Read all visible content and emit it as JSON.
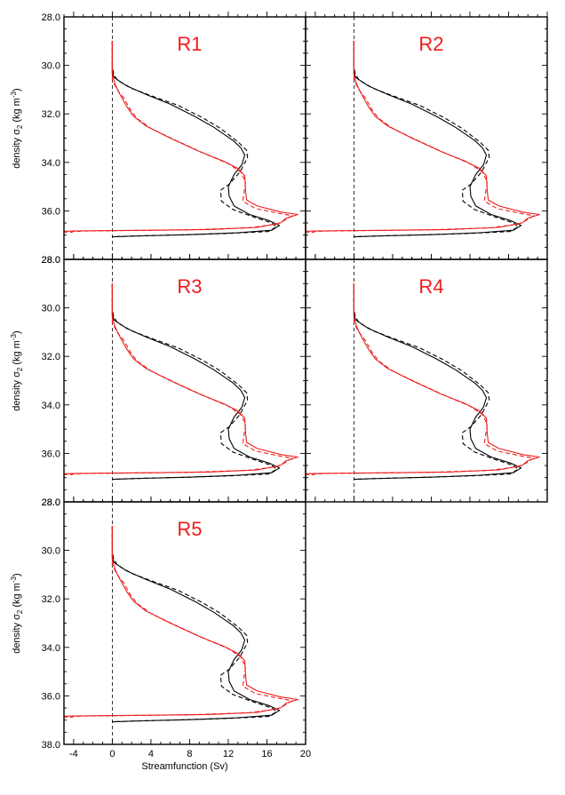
{
  "chart_data": {
    "type": "line",
    "title": "",
    "xlabel": "Streamfunction (Sv)",
    "ylabel_main": "density σ",
    "ylabel_sub": "2",
    "ylabel_unit_open": "(kg m",
    "ylabel_unit_exp": "-3",
    "ylabel_unit_close": ")",
    "xlim": [
      -5,
      20
    ],
    "ylim": [
      28,
      38
    ],
    "y_inverted": true,
    "x_ticks": [
      -4,
      0,
      4,
      8,
      12,
      16,
      20
    ],
    "x_tick_labels": [
      "-4",
      "0",
      "4",
      "8",
      "12",
      "16",
      "20"
    ],
    "y_ticks": [
      28,
      30,
      32,
      34,
      36,
      38
    ],
    "y_tick_labels": [
      "28.0",
      "30.0",
      "32.0",
      "34.0",
      "36.0",
      "38.0"
    ],
    "zero_line": 0,
    "panel_label_color": "#ee1c1c",
    "curves": {
      "black_solid": {
        "color": "#000000",
        "dash": "none",
        "points": [
          [
            0,
            29.0
          ],
          [
            0,
            30.0
          ],
          [
            0,
            30.3
          ],
          [
            0.2,
            30.5
          ],
          [
            1.5,
            30.85
          ],
          [
            3.5,
            31.2
          ],
          [
            6,
            31.6
          ],
          [
            8.5,
            32.1
          ],
          [
            10.5,
            32.55
          ],
          [
            12.5,
            33.1
          ],
          [
            13.3,
            33.4
          ],
          [
            13.7,
            33.7
          ],
          [
            13.4,
            34.1
          ],
          [
            12.6,
            34.5
          ],
          [
            12.0,
            35.0
          ],
          [
            12.1,
            35.4
          ],
          [
            12.6,
            35.8
          ],
          [
            14.2,
            36.15
          ],
          [
            16.2,
            36.4
          ],
          [
            17.3,
            36.6
          ],
          [
            16.5,
            36.8
          ],
          [
            13,
            36.9
          ],
          [
            8,
            36.98
          ],
          [
            3,
            37.03
          ],
          [
            0,
            37.07
          ]
        ]
      },
      "black_dashed": {
        "color": "#000000",
        "dash": "5,3",
        "points": [
          [
            0,
            29.0
          ],
          [
            0,
            30.0
          ],
          [
            0.1,
            30.3
          ],
          [
            0.5,
            30.6
          ],
          [
            2,
            30.95
          ],
          [
            4,
            31.25
          ],
          [
            6.8,
            31.65
          ],
          [
            9.3,
            32.15
          ],
          [
            11.2,
            32.6
          ],
          [
            13,
            33.15
          ],
          [
            13.9,
            33.5
          ],
          [
            14,
            33.8
          ],
          [
            13.2,
            34.4
          ],
          [
            12.1,
            34.9
          ],
          [
            11.2,
            35.15
          ],
          [
            11.3,
            35.6
          ],
          [
            12.5,
            35.95
          ],
          [
            14.6,
            36.25
          ],
          [
            16.5,
            36.5
          ],
          [
            17.0,
            36.65
          ],
          [
            16.2,
            36.85
          ],
          [
            12,
            36.93
          ],
          [
            6,
            37.0
          ],
          [
            2,
            37.04
          ],
          [
            0,
            37.07
          ]
        ]
      },
      "red_solid": {
        "color": "#ee1c1c",
        "dash": "none",
        "points": [
          [
            0,
            29.0
          ],
          [
            0,
            30.4
          ],
          [
            0.3,
            30.8
          ],
          [
            0.8,
            31.2
          ],
          [
            1.5,
            31.7
          ],
          [
            2.2,
            32.1
          ],
          [
            3.5,
            32.5
          ],
          [
            6,
            33.0
          ],
          [
            9,
            33.55
          ],
          [
            11.5,
            33.95
          ],
          [
            13,
            34.25
          ],
          [
            13.7,
            34.55
          ],
          [
            13.8,
            35.2
          ],
          [
            13.9,
            35.55
          ],
          [
            15,
            35.8
          ],
          [
            17.5,
            36.05
          ],
          [
            19.2,
            36.15
          ],
          [
            18.0,
            36.3
          ],
          [
            17.4,
            36.5
          ],
          [
            15,
            36.68
          ],
          [
            10,
            36.77
          ],
          [
            4,
            36.8
          ],
          [
            -2,
            36.82
          ],
          [
            -4,
            36.83
          ],
          [
            -5,
            36.84
          ]
        ]
      },
      "red_dashed": {
        "color": "#ee1c1c",
        "dash": "5,3",
        "points": [
          [
            0,
            29.0
          ],
          [
            0,
            30.6
          ],
          [
            0.5,
            31.0
          ],
          [
            1.2,
            31.35
          ],
          [
            1.9,
            31.85
          ],
          [
            2.6,
            32.2
          ],
          [
            4,
            32.6
          ],
          [
            6.6,
            33.1
          ],
          [
            9.6,
            33.65
          ],
          [
            12,
            34.05
          ],
          [
            13.3,
            34.4
          ],
          [
            13.8,
            34.8
          ],
          [
            13.6,
            35.3
          ],
          [
            13.5,
            35.6
          ],
          [
            14.8,
            35.9
          ],
          [
            17.2,
            36.1
          ],
          [
            18.6,
            36.2
          ],
          [
            17.8,
            36.4
          ],
          [
            17.0,
            36.55
          ],
          [
            14,
            36.7
          ],
          [
            8,
            36.78
          ],
          [
            2,
            36.81
          ],
          [
            -3,
            36.83
          ],
          [
            -4,
            36.85
          ],
          [
            -4.2,
            36.88
          ],
          [
            -5,
            36.87
          ]
        ]
      }
    },
    "panels": [
      {
        "label": "R1",
        "curves": [
          "black_solid",
          "black_dashed",
          "red_solid",
          "red_dashed"
        ]
      },
      {
        "label": "R2",
        "curves": [
          "black_solid",
          "black_dashed",
          "red_solid",
          "red_dashed"
        ]
      },
      {
        "label": "R3",
        "curves": [
          "black_solid",
          "black_dashed",
          "red_solid",
          "red_dashed"
        ]
      },
      {
        "label": "R4",
        "curves": [
          "black_solid",
          "black_dashed",
          "red_solid",
          "red_dashed"
        ]
      },
      {
        "label": "R5",
        "curves": [
          "black_solid",
          "black_dashed",
          "red_solid",
          "red_dashed"
        ]
      }
    ]
  }
}
